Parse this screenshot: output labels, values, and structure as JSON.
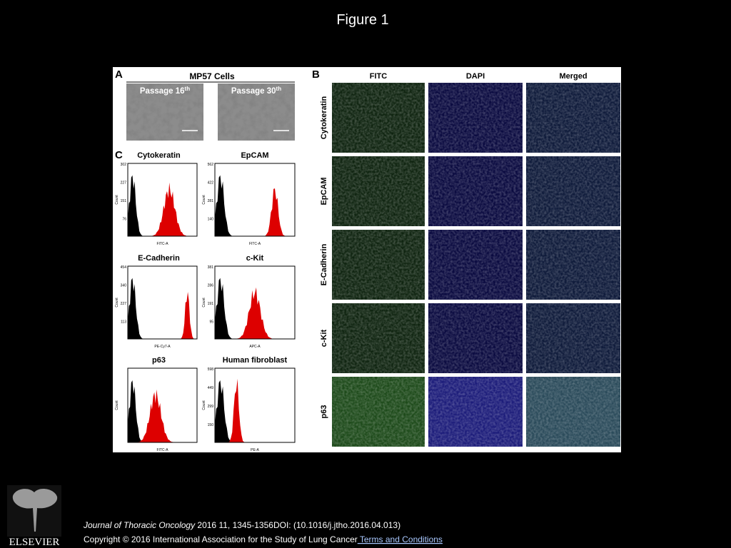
{
  "title": "Figure 1",
  "figure": {
    "panel_a": {
      "label": "A",
      "title": "MP57 Cells",
      "images": [
        {
          "label": "Passage 16",
          "sup": "th"
        },
        {
          "label": "Passage 30",
          "sup": "th"
        }
      ]
    },
    "panel_b": {
      "label": "B",
      "columns": [
        "FITC",
        "DAPI",
        "Merged"
      ],
      "rows": [
        "Cytokeratin",
        "EpCAM",
        "E-Cadherin",
        "c-Kit",
        "p63"
      ]
    },
    "panel_c": {
      "label": "C",
      "histograms": [
        {
          "title": "Cytokeratin",
          "x_label": "FITC-A",
          "y_label": "Count",
          "yticks": [
            "302",
            "227",
            "151",
            "76"
          ]
        },
        {
          "title": "EpCAM",
          "x_label": "FITC-A",
          "y_label": "Count",
          "yticks": [
            "562",
            "422",
            "281",
            "140"
          ]
        },
        {
          "title": "E-Cadherin",
          "x_label": "PE-Cy7-A",
          "y_label": "Count",
          "yticks": [
            "454",
            "340",
            "227",
            "113"
          ]
        },
        {
          "title": "c-Kit",
          "x_label": "APC-A",
          "y_label": "Count",
          "yticks": [
            "381",
            "286",
            "191",
            "95"
          ]
        },
        {
          "title": "p63",
          "x_label": "FITC-A",
          "y_label": "Count",
          "yticks": []
        },
        {
          "title": "Human fibroblast",
          "x_label": "PE-A",
          "y_label": "Count",
          "yticks": [
            "598",
            "449",
            "299",
            "150"
          ]
        }
      ]
    }
  },
  "footer": {
    "journal": "Journal of Thoracic Oncology",
    "citation": " 2016 11, 1345-1356DOI: (10.1016/j.jtho.2016.04.013)",
    "copyright": "Copyright © 2016 International Association for the Study of Lung Cancer",
    "link": " Terms and Conditions"
  },
  "logo": "ELSEVIER"
}
